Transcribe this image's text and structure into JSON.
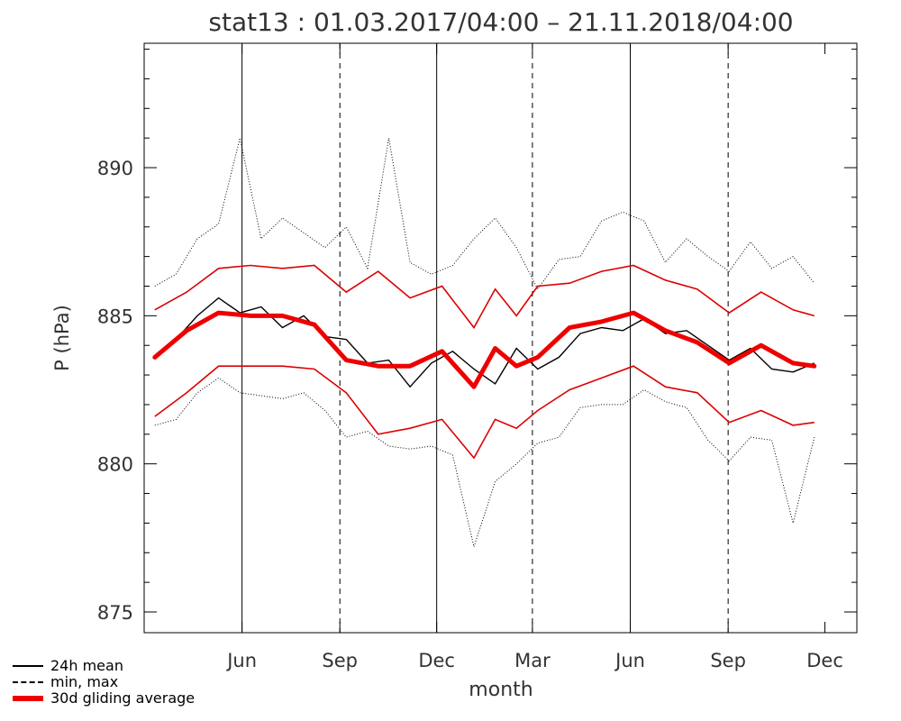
{
  "chart_data": {
    "type": "line",
    "title": "stat13 : 01.03.2017/04:00 – 21.11.2018/04:00",
    "xlabel": "month",
    "ylabel": "P (hPa)",
    "ylim": [
      874.3,
      894.2
    ],
    "xlim": [
      "2017-03-01",
      "2018-12-31"
    ],
    "yticks": [
      875,
      880,
      885,
      890
    ],
    "xticks": [
      {
        "date": "2017-06-01",
        "label": "Jun"
      },
      {
        "date": "2017-09-01",
        "label": "Sep"
      },
      {
        "date": "2017-12-01",
        "label": "Dec"
      },
      {
        "date": "2018-03-01",
        "label": "Mar"
      },
      {
        "date": "2018-06-01",
        "label": "Jun"
      },
      {
        "date": "2018-09-01",
        "label": "Sep"
      },
      {
        "date": "2018-12-01",
        "label": "Dec"
      }
    ],
    "vlines": [
      {
        "date": "2017-03-01",
        "style": "dashed"
      },
      {
        "date": "2017-06-01",
        "style": "solid"
      },
      {
        "date": "2017-09-01",
        "style": "dashed"
      },
      {
        "date": "2017-12-01",
        "style": "solid"
      },
      {
        "date": "2018-03-01",
        "style": "dashed"
      },
      {
        "date": "2018-06-01",
        "style": "solid"
      },
      {
        "date": "2018-09-01",
        "style": "dashed"
      }
    ],
    "legend": [
      "24h mean",
      "min, max",
      "30d gliding average"
    ],
    "legend_position": "bottom-left",
    "series": [
      {
        "name": "24h mean",
        "style": "solid-black",
        "x": [
          "2017-03-11",
          "2017-03-31",
          "2017-04-20",
          "2017-05-10",
          "2017-05-30",
          "2017-06-19",
          "2017-07-09",
          "2017-07-29",
          "2017-08-18",
          "2017-09-07",
          "2017-09-27",
          "2017-10-17",
          "2017-11-06",
          "2017-11-26",
          "2017-12-16",
          "2018-01-05",
          "2018-01-25",
          "2018-02-14",
          "2018-03-06",
          "2018-03-26",
          "2018-04-15",
          "2018-05-05",
          "2018-05-25",
          "2018-06-14",
          "2018-07-04",
          "2018-07-24",
          "2018-08-13",
          "2018-09-02",
          "2018-09-22",
          "2018-10-12",
          "2018-11-01",
          "2018-11-21"
        ],
        "y": [
          883.6,
          884.2,
          885.0,
          885.6,
          885.1,
          885.3,
          884.6,
          885.0,
          884.3,
          884.2,
          883.4,
          883.5,
          882.6,
          883.4,
          883.8,
          883.2,
          882.7,
          883.9,
          883.2,
          883.6,
          884.4,
          884.6,
          884.5,
          884.9,
          884.4,
          884.5,
          884.0,
          883.5,
          883.9,
          883.2,
          883.1,
          883.4
        ]
      },
      {
        "name": "min, max",
        "style": "dotted-black",
        "x": [
          "2017-03-11",
          "2017-03-31",
          "2017-04-20",
          "2017-05-10",
          "2017-05-30",
          "2017-06-19",
          "2017-07-09",
          "2017-07-29",
          "2017-08-18",
          "2017-09-07",
          "2017-09-27",
          "2017-10-17",
          "2017-11-06",
          "2017-11-26",
          "2017-12-16",
          "2018-01-05",
          "2018-01-25",
          "2018-02-14",
          "2018-03-06",
          "2018-03-26",
          "2018-04-15",
          "2018-05-05",
          "2018-05-25",
          "2018-06-14",
          "2018-07-04",
          "2018-07-24",
          "2018-08-13",
          "2018-09-02",
          "2018-09-22",
          "2018-10-12",
          "2018-11-01",
          "2018-11-21"
        ],
        "y_min": [
          881.3,
          881.5,
          882.4,
          882.9,
          882.4,
          882.3,
          882.2,
          882.4,
          881.8,
          880.9,
          881.1,
          880.6,
          880.5,
          880.6,
          880.3,
          877.2,
          879.4,
          880.0,
          880.7,
          880.9,
          881.9,
          882.0,
          882.0,
          882.5,
          882.1,
          881.9,
          880.8,
          880.1,
          880.9,
          880.8,
          878.0,
          880.9
        ],
        "y_max": [
          886.0,
          886.4,
          887.6,
          888.1,
          891.0,
          887.6,
          888.3,
          887.8,
          887.3,
          888.0,
          886.6,
          891.0,
          886.8,
          886.4,
          886.7,
          887.6,
          888.3,
          887.3,
          885.9,
          886.9,
          887.0,
          888.2,
          888.5,
          888.2,
          886.8,
          887.6,
          887.0,
          886.5,
          887.5,
          886.6,
          887.0,
          886.1
        ]
      },
      {
        "name": "30d gliding average",
        "style": "thick-red",
        "x": [
          "2017-03-11",
          "2017-04-10",
          "2017-05-10",
          "2017-06-09",
          "2017-07-09",
          "2017-08-08",
          "2017-09-07",
          "2017-10-07",
          "2017-11-06",
          "2017-12-06",
          "2018-01-05",
          "2018-01-25",
          "2018-02-14",
          "2018-03-06",
          "2018-04-05",
          "2018-05-05",
          "2018-06-04",
          "2018-07-04",
          "2018-08-03",
          "2018-09-02",
          "2018-10-02",
          "2018-11-01",
          "2018-11-21"
        ],
        "y": [
          883.6,
          884.5,
          885.1,
          885.0,
          885.0,
          884.7,
          883.5,
          883.3,
          883.3,
          883.8,
          882.6,
          883.9,
          883.3,
          883.6,
          884.6,
          884.8,
          885.1,
          884.5,
          884.1,
          883.4,
          884.0,
          883.4,
          883.3
        ]
      },
      {
        "name": "30d gliding max",
        "style": "thin-red",
        "x": [
          "2017-03-11",
          "2017-04-10",
          "2017-05-10",
          "2017-06-09",
          "2017-07-09",
          "2017-08-08",
          "2017-09-07",
          "2017-10-07",
          "2017-11-06",
          "2017-12-06",
          "2018-01-05",
          "2018-01-25",
          "2018-02-14",
          "2018-03-06",
          "2018-04-05",
          "2018-05-05",
          "2018-06-04",
          "2018-07-04",
          "2018-08-03",
          "2018-09-02",
          "2018-10-02",
          "2018-11-01",
          "2018-11-21"
        ],
        "y": [
          885.2,
          885.8,
          886.6,
          886.7,
          886.6,
          886.7,
          885.8,
          886.5,
          885.6,
          886.0,
          884.6,
          885.9,
          885.0,
          886.0,
          886.1,
          886.5,
          886.7,
          886.2,
          885.9,
          885.1,
          885.8,
          885.2,
          885.0
        ]
      },
      {
        "name": "30d gliding min",
        "style": "thin-red",
        "x": [
          "2017-03-11",
          "2017-04-10",
          "2017-05-10",
          "2017-06-09",
          "2017-07-09",
          "2017-08-08",
          "2017-09-07",
          "2017-10-07",
          "2017-11-06",
          "2017-12-06",
          "2018-01-05",
          "2018-01-25",
          "2018-02-14",
          "2018-03-06",
          "2018-04-05",
          "2018-05-05",
          "2018-06-04",
          "2018-07-04",
          "2018-08-03",
          "2018-09-02",
          "2018-10-02",
          "2018-11-01",
          "2018-11-21"
        ],
        "y": [
          881.6,
          882.4,
          883.3,
          883.3,
          883.3,
          883.2,
          882.4,
          881.0,
          881.2,
          881.5,
          880.2,
          881.5,
          881.2,
          881.8,
          882.5,
          882.9,
          883.3,
          882.6,
          882.4,
          881.4,
          881.8,
          881.3,
          881.4
        ]
      }
    ]
  },
  "legend": {
    "mean_label": "24h mean",
    "minmax_label": "min, max",
    "avg_label": "30d gliding average"
  },
  "colors": {
    "average": "#ee0000",
    "envelope": "#dd0000",
    "mean": "#000000",
    "axes": "#000000",
    "title": "#333333"
  }
}
